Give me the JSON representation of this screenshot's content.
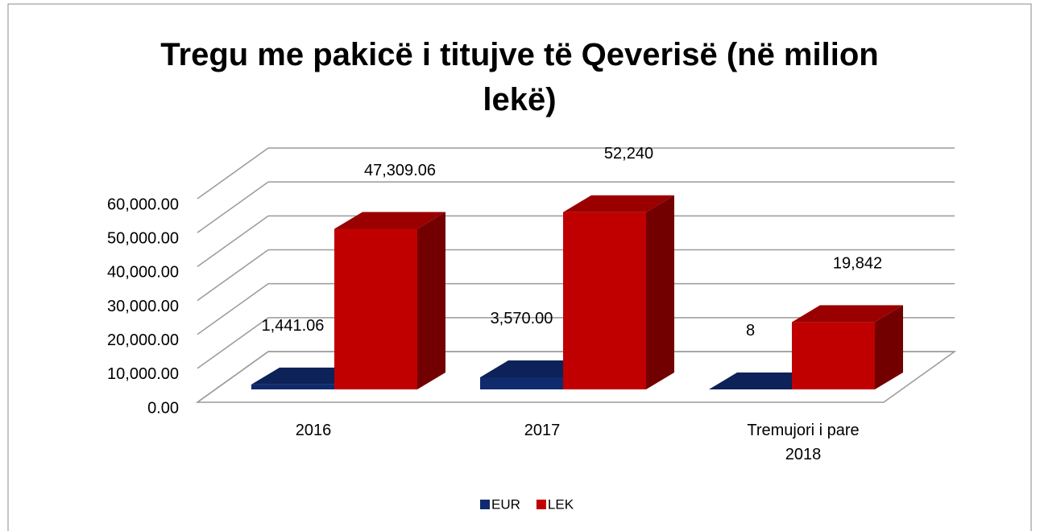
{
  "chart_data": {
    "type": "bar3d",
    "title": "Tregu me pakicë i titujve të Qeverisë (në milion lekë)",
    "categories": [
      "2016",
      "2017",
      "Tremujori i pare 2018"
    ],
    "series": [
      {
        "name": "EUR",
        "color": "#0f2b6e",
        "values": [
          1441.06,
          3570.0,
          8
        ],
        "value_labels": [
          "1,441.06",
          "3,570.00",
          "8"
        ]
      },
      {
        "name": "LEK",
        "color": "#c00000",
        "values": [
          47309.06,
          52240,
          19842
        ],
        "value_labels": [
          "47,309.06",
          "52,240",
          "19,842"
        ]
      }
    ],
    "ylim": [
      0,
      60000
    ],
    "yticks": [
      {
        "value": 0,
        "label": "0.00"
      },
      {
        "value": 10000,
        "label": "10,000.00"
      },
      {
        "value": 20000,
        "label": "20,000.00"
      },
      {
        "value": 30000,
        "label": "30,000.00"
      },
      {
        "value": 40000,
        "label": "40,000.00"
      },
      {
        "value": 50000,
        "label": "50,000.00"
      },
      {
        "value": 60000,
        "label": "60,000.00"
      }
    ],
    "grid": true,
    "legend": "bottom"
  }
}
